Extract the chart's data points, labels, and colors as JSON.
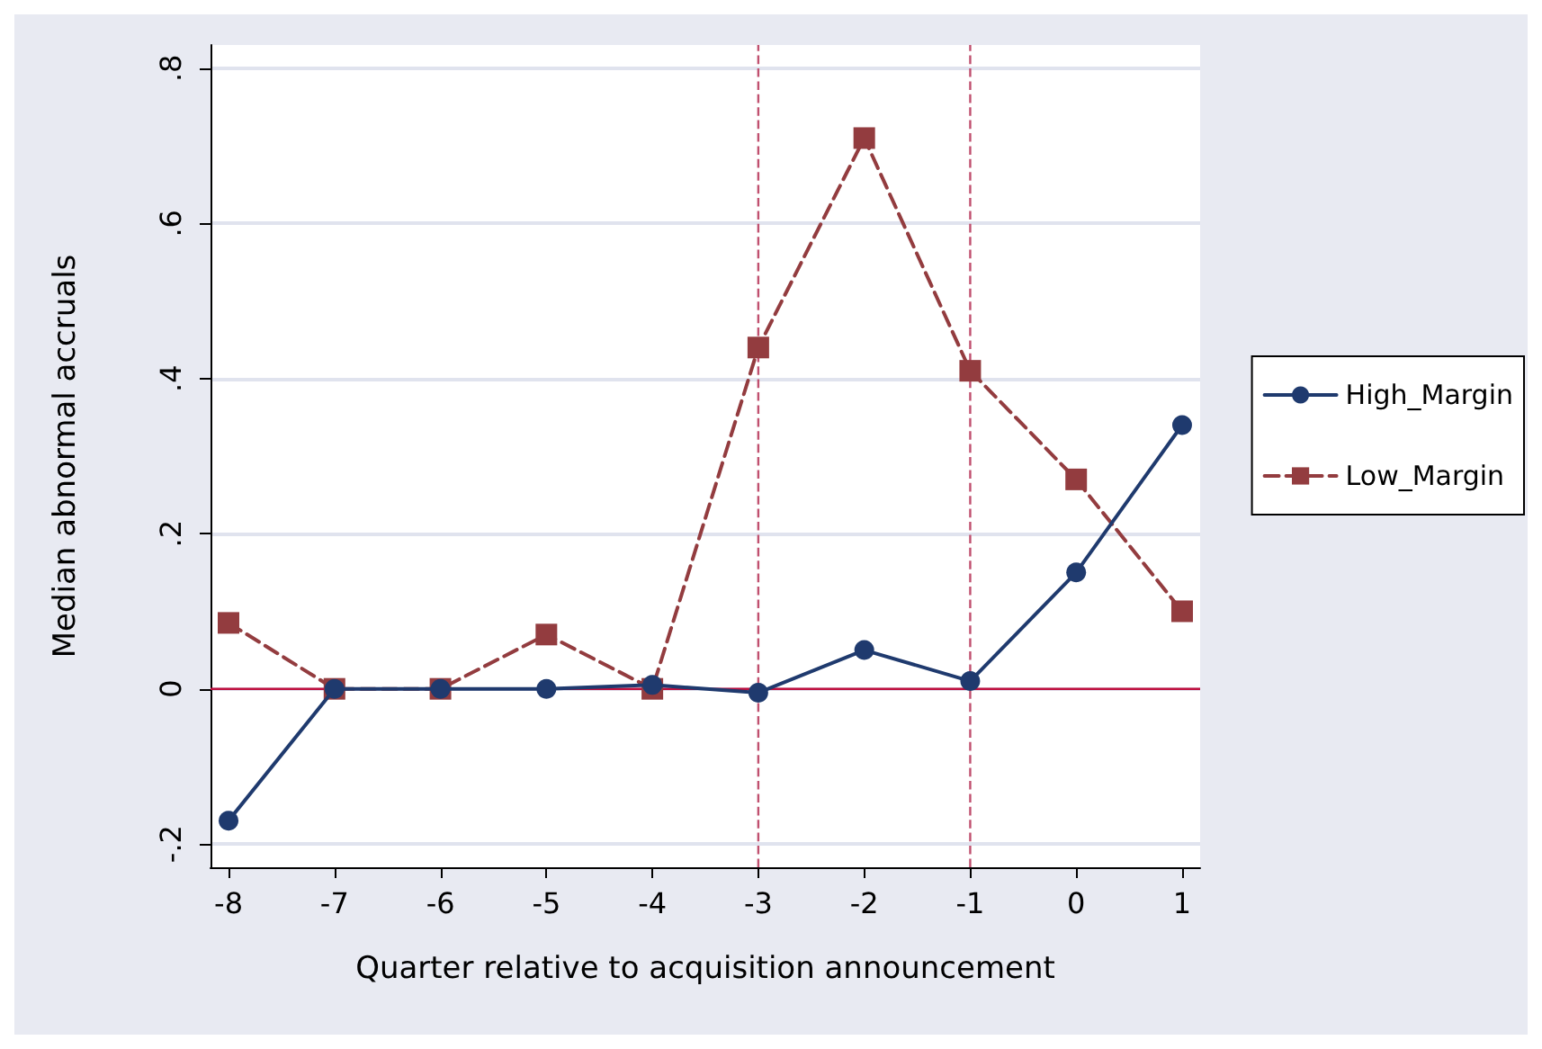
{
  "chart_data": {
    "type": "line",
    "xlabel": "Quarter relative to acquisition announcement",
    "ylabel": "Median abnormal accruals",
    "x": [
      -8,
      -7,
      -6,
      -5,
      -4,
      -3,
      -2,
      -1,
      0,
      1
    ],
    "series": [
      {
        "name": "High_Margin",
        "color": "#1f3a6e",
        "marker": "circle",
        "line_style": "solid",
        "values": [
          -0.17,
          0,
          0,
          0,
          0.005,
          -0.005,
          0.05,
          0.01,
          0.15,
          0.34
        ]
      },
      {
        "name": "Low_Margin",
        "color": "#933c3f",
        "marker": "square",
        "line_style": "dashed",
        "values": [
          0.085,
          0,
          0,
          0.07,
          0,
          0.44,
          0.71,
          0.41,
          0.27,
          0.1
        ]
      }
    ],
    "xlim": [
      -8.17,
      1.17
    ],
    "xticks": [
      -8,
      -7,
      -6,
      -5,
      -4,
      -3,
      -2,
      -1,
      0,
      1
    ],
    "ylim": [
      -0.23,
      0.83
    ],
    "yticks": [
      {
        "value": -0.2,
        "label": "-.2"
      },
      0,
      {
        "value": 0.2,
        "label": ".2"
      },
      {
        "value": 0.4,
        "label": ".4"
      },
      {
        "value": 0.6,
        "label": ".6"
      },
      {
        "value": 0.8,
        "label": ".8"
      }
    ],
    "ref_lines": [
      {
        "axis": "x",
        "value": -3,
        "color": "#c0506f",
        "line_style": "dashed"
      },
      {
        "axis": "x",
        "value": -1,
        "color": "#c0506f",
        "line_style": "dashed"
      },
      {
        "axis": "y",
        "value": 0,
        "color": "#c0103f",
        "line_style": "solid"
      }
    ],
    "grid": "y",
    "legend": "right"
  }
}
